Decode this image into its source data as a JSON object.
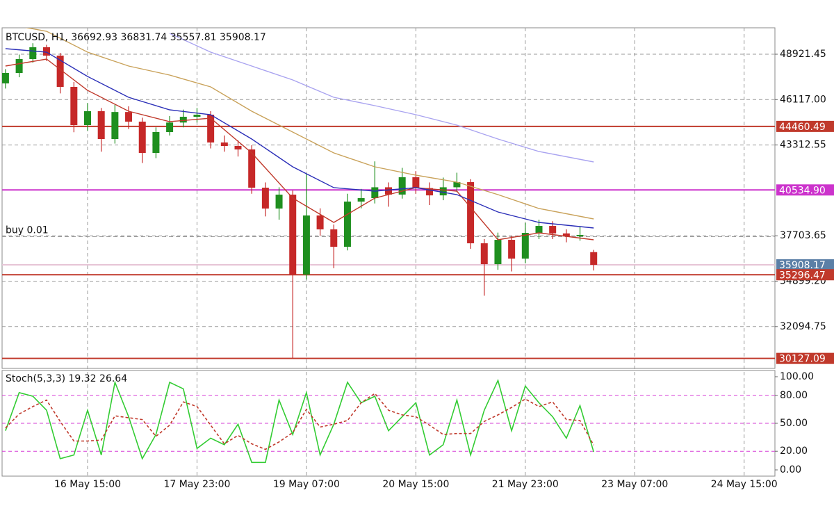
{
  "chart_data": [
    {
      "type": "candlestick",
      "title": "BTCUSD, H1, 36692.93 36831.74 35557.81 35908.17",
      "x": [
        "15 May 15:00",
        "15 May 19:00",
        "15 May 23:00",
        "16 May 03:00",
        "16 May 07:00",
        "16 May 11:00",
        "16 May 15:00",
        "16 May 19:00",
        "16 May 23:00",
        "17 May 03:00",
        "17 May 07:00",
        "17 May 11:00",
        "17 May 15:00",
        "17 May 19:00",
        "17 May 23:00",
        "18 May 03:00",
        "18 May 07:00",
        "18 May 11:00",
        "18 May 15:00",
        "18 May 19:00",
        "18 May 23:00",
        "19 May 03:00",
        "19 May 07:00",
        "19 May 11:00",
        "19 May 15:00",
        "19 May 19:00",
        "19 May 23:00",
        "20 May 03:00",
        "20 May 07:00",
        "20 May 11:00",
        "20 May 15:00",
        "20 May 19:00",
        "20 May 23:00",
        "21 May 03:00",
        "21 May 07:00",
        "21 May 11:00",
        "21 May 15:00",
        "21 May 19:00",
        "21 May 23:00",
        "22 May 03:00",
        "22 May 07:00",
        "22 May 11:00",
        "22 May 15:00",
        "22 May 19:00"
      ],
      "open": [
        47118,
        47762,
        48621,
        49351,
        48835,
        46903,
        44541,
        45400,
        43681,
        45350,
        44755,
        42822,
        44111,
        44700,
        45056,
        45185,
        43467,
        43252,
        43037,
        40675,
        39386,
        40245,
        35306,
        38957,
        38098,
        37024,
        39816,
        40030,
        40700,
        40250,
        41319,
        40650,
        40200,
        40700,
        41018,
        37239,
        35950,
        37453,
        36294,
        37883,
        38312,
        37850,
        37668,
        36692.93
      ],
      "high": [
        48000,
        48900,
        49600,
        49500,
        49000,
        47200,
        45900,
        45600,
        45800,
        45700,
        45000,
        44400,
        45100,
        45500,
        45600,
        45400,
        43900,
        43600,
        43300,
        41000,
        40700,
        40500,
        41500,
        39400,
        38400,
        40300,
        40600,
        42300,
        41000,
        41900,
        41700,
        41000,
        41300,
        41600,
        41200,
        37500,
        37900,
        37700,
        38500,
        38700,
        38600,
        38100,
        38300,
        36831.74
      ],
      "low": [
        46800,
        47500,
        48400,
        48500,
        46500,
        44100,
        44200,
        42900,
        43400,
        44300,
        42200,
        42500,
        43900,
        44400,
        44700,
        43100,
        42900,
        42600,
        40300,
        38900,
        38700,
        30150,
        35000,
        37700,
        35700,
        36800,
        39400,
        39700,
        39500,
        40000,
        40300,
        39600,
        39900,
        40400,
        36900,
        34000,
        35600,
        35500,
        36000,
        37500,
        37500,
        37300,
        37400,
        35557.81
      ],
      "close": [
        47762,
        48621,
        49351,
        48835,
        46903,
        44541,
        45400,
        43681,
        45350,
        44755,
        42822,
        44111,
        44700,
        45056,
        45185,
        43467,
        43252,
        43037,
        40675,
        39386,
        40245,
        35306,
        38957,
        38098,
        37024,
        39816,
        40030,
        40700,
        40250,
        41319,
        40650,
        40200,
        40700,
        41018,
        37239,
        35950,
        37453,
        36294,
        37883,
        38312,
        37850,
        37668,
        37754,
        35908.17
      ],
      "up_color": "#1f8f1f",
      "down_color": "#c62828",
      "xlim": [
        "15 May 14:00",
        "25 May 00:00"
      ],
      "xticks": [
        "16 May 15:00",
        "17 May 23:00",
        "19 May 07:00",
        "20 May 15:00",
        "21 May 23:00",
        "23 May 07:00",
        "24 May 15:00"
      ],
      "ylim": [
        29510,
        50553
      ],
      "yticks": [
        {
          "value": 48921.45,
          "label": "48921.45"
        },
        {
          "value": 46117.0,
          "label": "46117.00"
        },
        {
          "value": 43312.55,
          "label": "43312.55"
        },
        {
          "value": 37703.65,
          "label": "37703.65"
        },
        {
          "value": 34899.2,
          "label": "34899.20"
        },
        {
          "value": 32094.75,
          "label": "32094.75"
        }
      ],
      "grid": true,
      "hlines": [
        {
          "value": 44460.49,
          "label": "44460.49",
          "color": "#c0392b"
        },
        {
          "value": 40534.9,
          "label": "40534.90",
          "color": "#cc33cc"
        },
        {
          "value": 35908.17,
          "label": "35908.17",
          "color": "#5b7fa6",
          "line_color": "#e6c4d6"
        },
        {
          "value": 35296.47,
          "label": "35296.47",
          "color": "#c0392b"
        },
        {
          "value": 30127.09,
          "label": "30127.09",
          "color": "#c0392b"
        }
      ],
      "order": {
        "text": "buy 0.01",
        "price": 37650
      },
      "lines": {
        "x": [
          "15 May 15:00",
          "16 May 03:00",
          "16 May 15:00",
          "17 May 03:00",
          "17 May 15:00",
          "18 May 03:00",
          "18 May 15:00",
          "19 May 03:00",
          "19 May 15:00",
          "20 May 03:00",
          "20 May 15:00",
          "21 May 03:00",
          "21 May 15:00",
          "22 May 03:00",
          "22 May 19:00"
        ],
        "series": [
          {
            "color": "#c0392b",
            "values": [
              48191,
              48621,
              46688,
              45400,
              44755,
              44970,
              42822,
              40030,
              38527,
              40030,
              40675,
              40460,
              37453,
              37883,
              37453
            ]
          },
          {
            "color": "#2b2fb8",
            "values": [
              49265,
              49050,
              47547,
              46258,
              45485,
              45185,
              43681,
              41963,
              40675,
              40460,
              40675,
              40245,
              39171,
              38527,
              38183
            ]
          },
          {
            "color": "#c9a25a",
            "values": [
              50800,
              50339,
              49050,
              48191,
              47633,
              46903,
              45400,
              44111,
              42822,
              41963,
              41448,
              41018,
              40245,
              39386,
              38742
            ]
          },
          {
            "color": "#a9a3f0",
            "values": [
              null,
              null,
              null,
              null,
              50210,
              49050,
              48191,
              47332,
              46258,
              45743,
              45185,
              44541,
              43681,
              42908,
              42264
            ]
          }
        ]
      }
    },
    {
      "type": "line",
      "title": "Stoch(5,3,3) 19.32 26.64",
      "series": [
        {
          "color": "#33cc33",
          "dashed": false,
          "values": [
            42,
            83,
            79,
            64,
            12,
            16,
            64,
            16,
            94,
            57,
            12,
            38,
            94,
            87,
            23,
            34,
            27,
            49,
            8,
            8,
            75,
            38,
            83,
            16,
            49,
            94,
            72,
            79,
            42,
            57,
            72,
            16,
            27,
            75,
            16,
            64,
            96,
            42,
            90,
            72,
            57,
            34,
            69,
            19.32
          ]
        },
        {
          "color": "#c0392b",
          "dashed": true,
          "values": [
            45,
            60,
            68,
            75,
            52,
            31,
            31,
            32,
            58,
            56,
            54,
            36,
            48,
            73,
            68,
            48,
            28,
            37,
            28,
            22,
            30,
            40,
            65,
            46,
            49,
            53,
            72,
            82,
            64,
            59,
            57,
            48,
            38,
            39,
            39,
            52,
            59,
            67,
            76,
            68,
            73,
            54,
            53,
            26.64
          ]
        }
      ],
      "ylim": [
        -6.7,
        106.7
      ],
      "yticks": [
        {
          "value": 100,
          "label": "100.00"
        },
        {
          "value": 80,
          "label": "80.00"
        },
        {
          "value": 50,
          "label": "50.00"
        },
        {
          "value": 20,
          "label": "20.00"
        },
        {
          "value": 0,
          "label": "0.00"
        }
      ],
      "levels": [
        80,
        50,
        20
      ],
      "level_color": "#d63cd6"
    }
  ]
}
